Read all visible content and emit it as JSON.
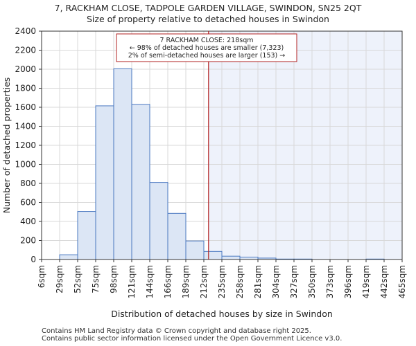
{
  "chart_data": {
    "type": "bar",
    "title": "7, RACKHAM CLOSE, TADPOLE GARDEN VILLAGE, SWINDON, SN25 2QT",
    "subtitle": "Size of property relative to detached houses in Swindon",
    "xlabel": "Distribution of detached houses by size in Swindon",
    "ylabel": "Number of detached properties",
    "ylim": [
      0,
      2400
    ],
    "yticks": [
      0,
      200,
      400,
      600,
      800,
      1000,
      1200,
      1400,
      1600,
      1800,
      2000,
      2200,
      2400
    ],
    "bin_edges": [
      6,
      29,
      52,
      75,
      98,
      121,
      144,
      166,
      189,
      212,
      235,
      258,
      281,
      304,
      327,
      350,
      373,
      396,
      419,
      442,
      465
    ],
    "xtick_labels": [
      "6sqm",
      "29sqm",
      "52sqm",
      "75sqm",
      "98sqm",
      "121sqm",
      "144sqm",
      "166sqm",
      "189sqm",
      "212sqm",
      "235sqm",
      "258sqm",
      "281sqm",
      "304sqm",
      "327sqm",
      "350sqm",
      "373sqm",
      "396sqm",
      "419sqm",
      "442sqm",
      "465sqm"
    ],
    "values": [
      0,
      50,
      505,
      1615,
      2005,
      1630,
      810,
      485,
      195,
      85,
      35,
      25,
      15,
      5,
      5,
      0,
      0,
      0,
      5,
      0
    ],
    "marker_value": 218,
    "annotation_lines": [
      "7 RACKHAM CLOSE: 218sqm",
      "← 98% of detached houses are smaller (7,323)",
      "2% of semi-detached houses are larger (153) →"
    ],
    "grid": true
  },
  "footer": {
    "line1": "Contains HM Land Registry data © Crown copyright and database right 2025.",
    "line2": "Contains public sector information licensed under the Open Government Licence v3.0."
  },
  "colors": {
    "bar_fill": "#dce6f5",
    "bar_edge": "#4a78c0",
    "highlight_bg": "#eef2fb",
    "marker": "#b22222",
    "grid": "#d8d8d8"
  }
}
